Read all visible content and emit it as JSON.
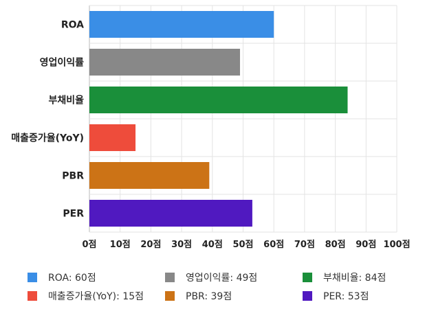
{
  "chart_data": {
    "type": "bar",
    "orientation": "horizontal",
    "categories": [
      "ROA",
      "영업이익률",
      "부채비율",
      "매출증가율(YoY)",
      "PBR",
      "PER"
    ],
    "values": [
      60,
      49,
      84,
      15,
      39,
      53
    ],
    "colors": [
      "#3a8ee6",
      "#888888",
      "#1a8f3a",
      "#ee4c3b",
      "#cc7316",
      "#5019c0"
    ],
    "xlim": [
      0,
      100
    ],
    "x_ticks": [
      "0점",
      "10점",
      "20점",
      "30점",
      "40점",
      "50점",
      "60점",
      "70점",
      "80점",
      "90점",
      "100점"
    ],
    "grid": true,
    "legend_position": "bottom",
    "legend": [
      {
        "label": "ROA: 60점",
        "color": "#3a8ee6"
      },
      {
        "label": "영업이익률: 49점",
        "color": "#888888"
      },
      {
        "label": "부채비율: 84점",
        "color": "#1a8f3a"
      },
      {
        "label": "매출증가율(YoY): 15점",
        "color": "#ee4c3b"
      },
      {
        "label": "PBR: 39점",
        "color": "#cc7316"
      },
      {
        "label": "PER: 53점",
        "color": "#5019c0"
      }
    ]
  }
}
